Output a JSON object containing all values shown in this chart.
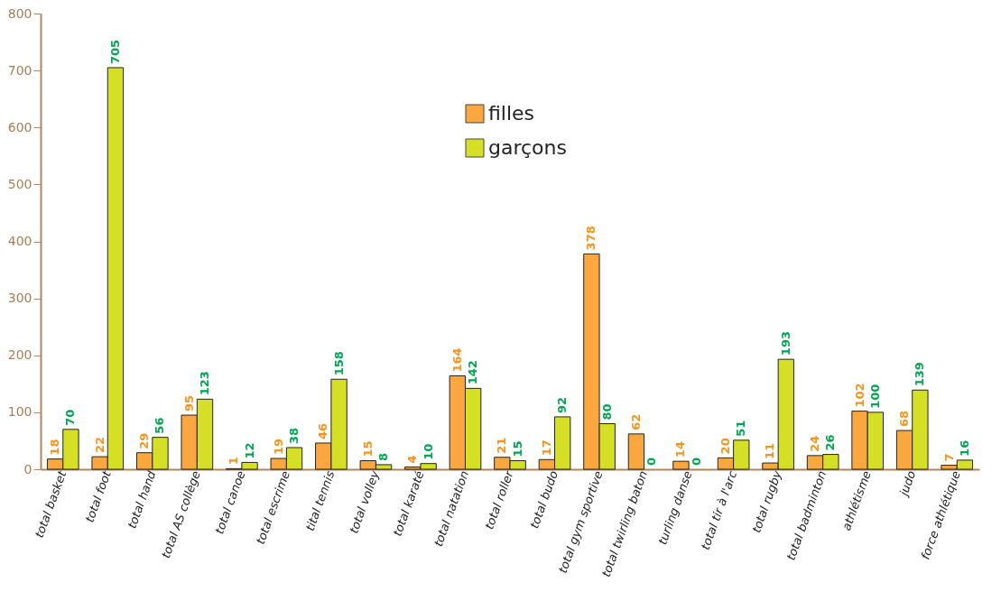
{
  "chart_data": {
    "type": "bar",
    "categories": [
      "total basket",
      "total foot",
      "total hand",
      "total AS collège",
      "total canoe",
      "total escrime",
      "tital tennis",
      "total volley",
      "total karaté",
      "total natation",
      "total roller",
      "total budo",
      "total gym sportive",
      "total twirling baton",
      "turling danse",
      "total tir à l'arc",
      "total rugby",
      "total badminton",
      "athlétisme",
      "judo",
      "force athlétique"
    ],
    "series": [
      {
        "name": "filles",
        "color": "#f9a73e",
        "values": [
          18,
          22,
          29,
          95,
          1,
          19,
          46,
          15,
          4,
          164,
          21,
          17,
          378,
          62,
          14,
          20,
          11,
          24,
          102,
          68,
          7
        ]
      },
      {
        "name": "garçons",
        "color": "#d4df26",
        "values": [
          70,
          705,
          56,
          123,
          12,
          38,
          158,
          8,
          10,
          142,
          15,
          92,
          80,
          0,
          0,
          51,
          193,
          26,
          100,
          139,
          16
        ]
      }
    ],
    "ylim": [
      0,
      800
    ],
    "yticks": [
      0,
      100,
      200,
      300,
      400,
      500,
      600,
      700,
      800
    ],
    "grid": false,
    "legend": "top",
    "data_labels": true
  }
}
